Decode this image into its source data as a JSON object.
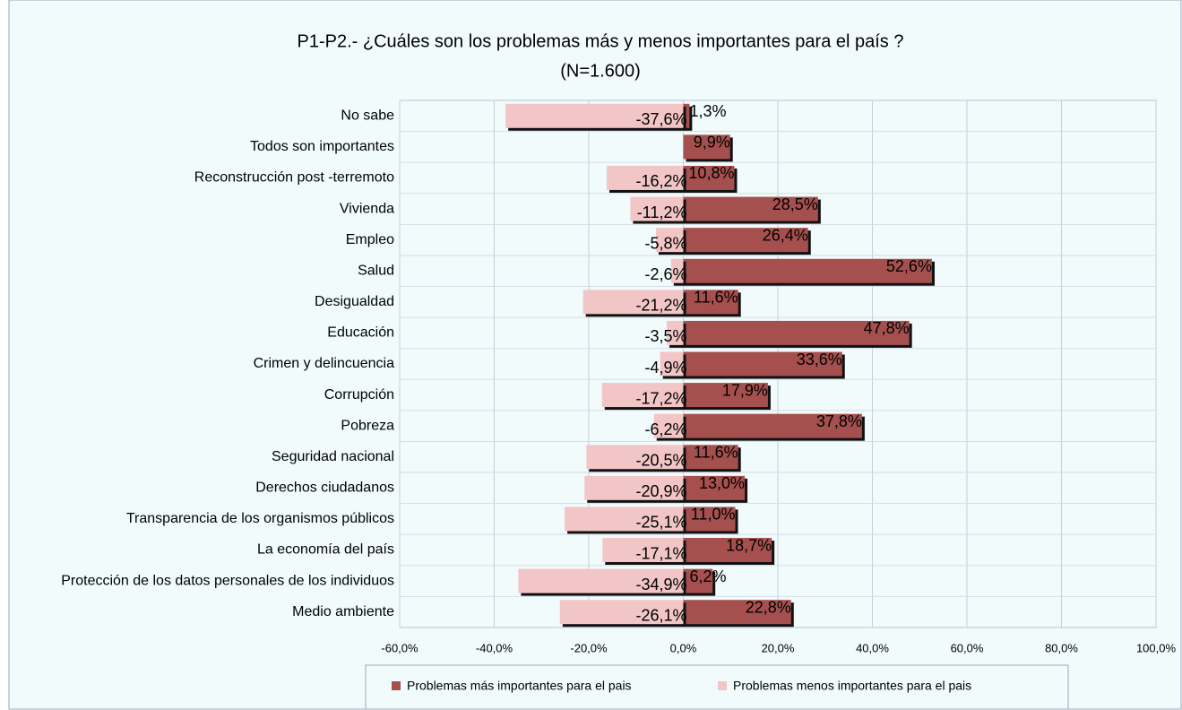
{
  "chart_data": {
    "type": "bar",
    "orientation": "horizontal",
    "title": "P1-P2.- ¿Cuáles son los problemas más y menos importantes para el país ?",
    "subtitle": "(N=1.600)",
    "categories": [
      "No sabe",
      "Todos son importantes",
      "Reconstrucción post -terremoto",
      "Vivienda",
      "Empleo",
      "Salud",
      "Desigualdad",
      "Educación",
      "Crimen y delincuencia",
      "Corrupción",
      "Pobreza",
      "Seguridad nacional",
      "Derechos ciudadanos",
      "Transparencia de los organismos públicos",
      "La economía del país",
      "Protección de los datos personales de los individuos",
      "Medio ambiente"
    ],
    "series": [
      {
        "name": "Problemas más importantes para el pais",
        "color": "#a5504e",
        "values": [
          1.3,
          9.9,
          10.8,
          28.5,
          26.4,
          52.6,
          11.6,
          47.8,
          33.6,
          17.9,
          37.8,
          11.6,
          13.0,
          11.0,
          18.7,
          6.2,
          22.8
        ],
        "value_labels": [
          "1,3%",
          "9,9%",
          "10,8%",
          "28,5%",
          "26,4%",
          "52,6%",
          "11,6%",
          "47,8%",
          "33,6%",
          "17,9%",
          "37,8%",
          "11,6%",
          "13,0%",
          "11,0%",
          "18,7%",
          "6,2%",
          "22,8%"
        ]
      },
      {
        "name": "Problemas menos importantes para el pais",
        "color": "#f2c6c6",
        "values": [
          -37.6,
          null,
          -16.2,
          -11.2,
          -5.8,
          -2.6,
          -21.2,
          -3.5,
          -4.9,
          -17.2,
          -6.2,
          -20.5,
          -20.9,
          -25.1,
          -17.1,
          -34.9,
          -26.1
        ],
        "value_labels": [
          "-37,6%",
          null,
          "-16,2%",
          "-11,2%",
          "-5,8%",
          "-2,6%",
          "-21,2%",
          "-3,5%",
          "-4,9%",
          "-17,2%",
          "-6,2%",
          "-20,5%",
          "-20,9%",
          "-25,1%",
          "-17,1%",
          "-34,9%",
          "-26,1%"
        ]
      }
    ],
    "xlim": [
      -60,
      100
    ],
    "xticks": [
      {
        "value": -60,
        "label": "-60,0%"
      },
      {
        "value": -40,
        "label": "-40,0%"
      },
      {
        "value": -20,
        "label": "-20,0%"
      },
      {
        "value": 0,
        "label": "0,0%"
      },
      {
        "value": 20,
        "label": "20,0%"
      },
      {
        "value": 40,
        "label": "40,0%"
      },
      {
        "value": 60,
        "label": "60,0%"
      },
      {
        "value": 80,
        "label": "80,0%"
      },
      {
        "value": 100,
        "label": "100,0%"
      }
    ],
    "grid": true,
    "legend": "bottom"
  }
}
